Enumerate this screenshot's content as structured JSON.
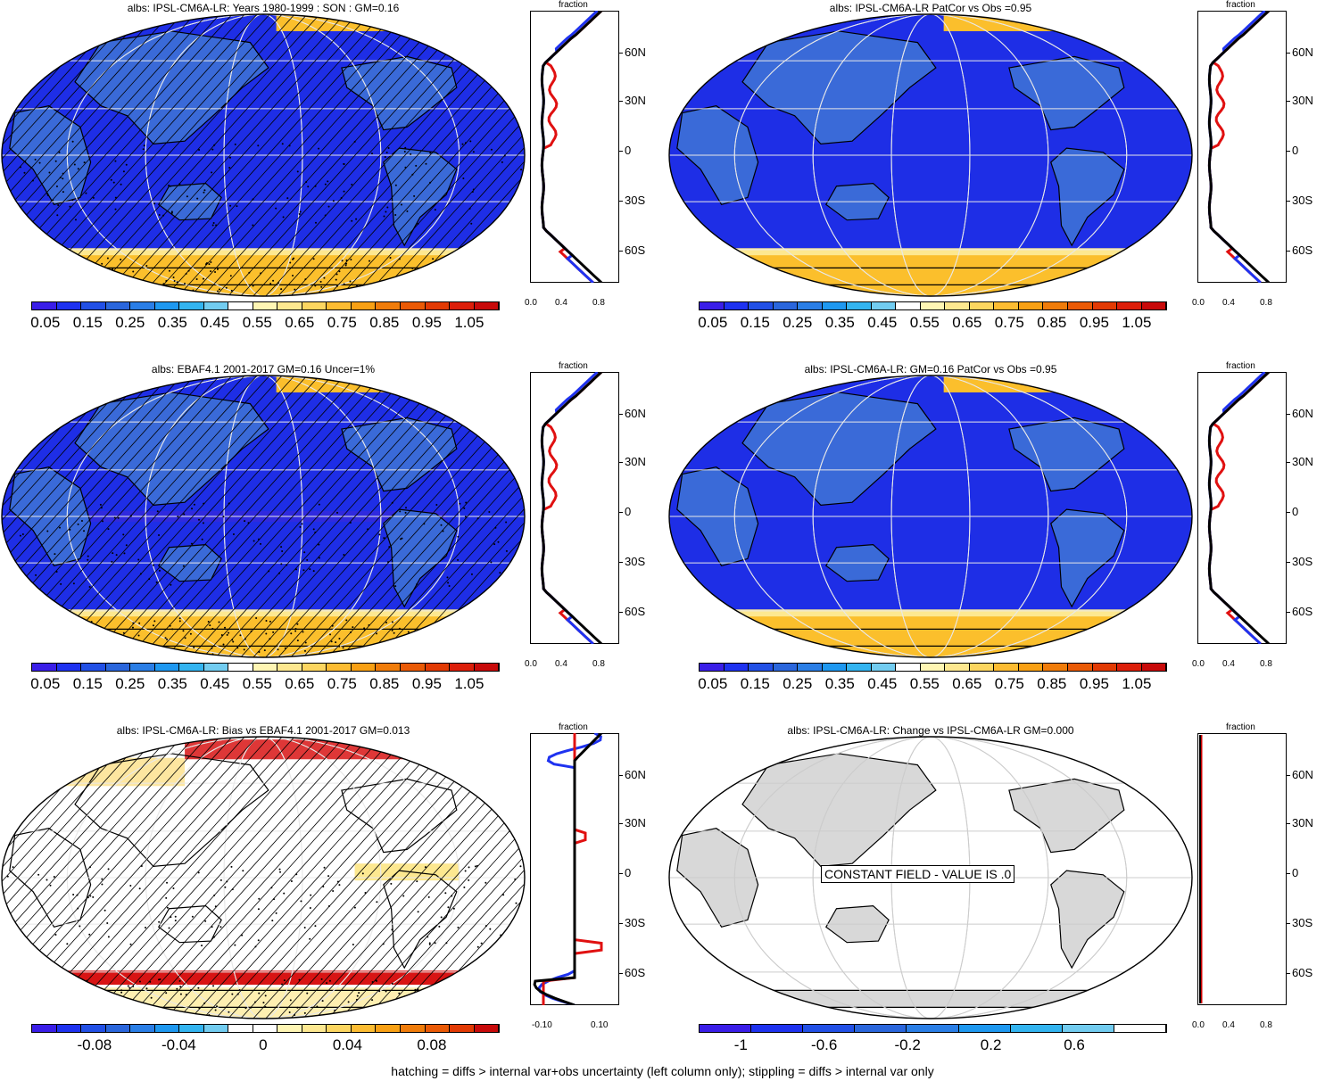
{
  "panels": [
    {
      "id": "p1",
      "title": "albs: IPSL-CM6A-LR: Years 1980-1999 : SON : GM=0.16",
      "style": "clim",
      "hatch": true,
      "stipple": true
    },
    {
      "id": "p2",
      "title": "albs: IPSL-CM6A-LR PatCor vs Obs =0.95",
      "style": "clim",
      "hatch": false,
      "stipple": false
    },
    {
      "id": "p3",
      "title": "albs: EBAF4.1 2001-2017 GM=0.16 Uncer=1%",
      "style": "obs",
      "hatch": true,
      "stipple": true
    },
    {
      "id": "p4",
      "title": "albs: IPSL-CM6A-LR: GM=0.16 PatCor vs Obs =0.95",
      "style": "clim",
      "hatch": false,
      "stipple": false
    },
    {
      "id": "p5",
      "title": "albs: IPSL-CM6A-LR: Bias vs EBAF4.1 2001-2017  GM=0.013",
      "style": "bias",
      "hatch": true,
      "stipple": true
    },
    {
      "id": "p6",
      "title": "albs: IPSL-CM6A-LR: Change vs IPSL-CM6A-LR GM=0.000",
      "style": "const",
      "hatch": false,
      "stipple": false,
      "message": "CONSTANT FIELD - VALUE IS .0"
    }
  ],
  "zonal": {
    "title": "fraction",
    "lat_labels": [
      "60N",
      "30N",
      "0",
      "30S",
      "60S"
    ],
    "x_ticks_abs": [
      "0.0",
      "0.4",
      "0.8"
    ],
    "x_ticks_bias": [
      "-0.10",
      "0.10"
    ]
  },
  "colorbars": {
    "abs": {
      "labels": [
        "0.05",
        "0.15",
        "0.25",
        "0.35",
        "0.45",
        "0.55",
        "0.65",
        "0.75",
        "0.85",
        "0.95",
        "1.05"
      ],
      "colors": [
        "#3a1ee8",
        "#1e32f0",
        "#2250e6",
        "#2a66dc",
        "#2a7ee6",
        "#1e98f0",
        "#33b4f0",
        "#72ccf0",
        "#ffffff",
        "#fff6b4",
        "#fde890",
        "#fcd660",
        "#fcbc32",
        "#f8a014",
        "#f07c0a",
        "#ea5a06",
        "#e23a04",
        "#dc1e0a",
        "#c80a0a"
      ]
    },
    "bias": {
      "labels": [
        "-0.08",
        "-0.04",
        "0",
        "0.04",
        "0.08"
      ],
      "colors": [
        "#3a1ee8",
        "#1e32f0",
        "#2250e6",
        "#2a66dc",
        "#2a7ee6",
        "#1e98f0",
        "#33b4f0",
        "#72ccf0",
        "#ffffff",
        "#ffffff",
        "#fff6b4",
        "#fde890",
        "#fcd660",
        "#fcbc32",
        "#f8a014",
        "#f07c0a",
        "#ea5a06",
        "#e23a04",
        "#c80a0a"
      ]
    },
    "change": {
      "labels": [
        "-1",
        "-0.6",
        "-0.2",
        "0.2",
        "0.6"
      ],
      "colors": [
        "#3a1ee8",
        "#1e32f0",
        "#2250e6",
        "#2a66dc",
        "#2a7ee6",
        "#1e98f0",
        "#33b4f0",
        "#72ccf0",
        "#ffffff"
      ]
    }
  },
  "footer": "hatching = diffs > internal var+obs uncertainty (left column only); stippling = diffs > internal var only",
  "colors": {
    "ocean": "#1e2ee6",
    "ice": "#fbbf2c",
    "land": "#3a6ad8",
    "bias_red": "#d81414",
    "grey_land": "#d8d8d8"
  }
}
